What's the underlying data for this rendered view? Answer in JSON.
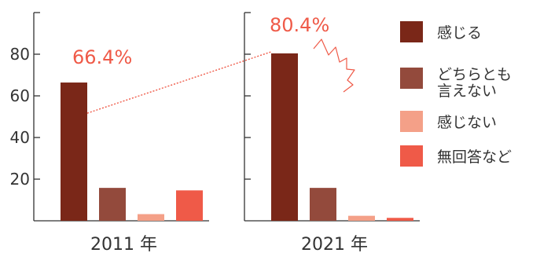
{
  "chart_data": {
    "type": "bar",
    "ylim": [
      0,
      100
    ],
    "yticks": [
      20,
      40,
      60,
      80
    ],
    "grid": false,
    "legend_position": "right",
    "categories": [
      "感じる",
      "どちらとも言えない",
      "感じない",
      "無回答など"
    ],
    "colors": [
      "#7a2718",
      "#934a3c",
      "#f4a088",
      "#ef5a48"
    ],
    "callout_color": "#ef5a48",
    "panels": [
      {
        "label": "2011 年",
        "values": [
          66.4,
          15.8,
          3.2,
          14.6
        ],
        "callout": "66.4%"
      },
      {
        "label": "2021 年",
        "values": [
          80.4,
          15.8,
          2.4,
          1.4
        ],
        "callout": "80.4%"
      }
    ],
    "legend": [
      {
        "lines": [
          "感じる"
        ]
      },
      {
        "lines": [
          "どちらとも",
          "言えない"
        ]
      },
      {
        "lines": [
          "感じない"
        ]
      },
      {
        "lines": [
          "無回答など"
        ]
      }
    ]
  }
}
